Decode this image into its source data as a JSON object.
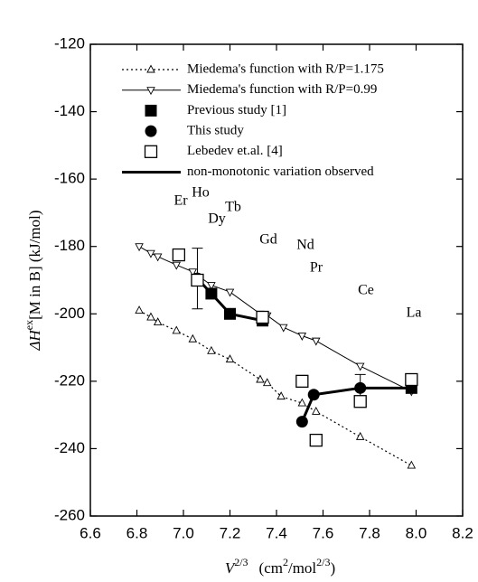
{
  "chart_data": {
    "type": "scatter",
    "xlabel": [
      "V",
      "2/3",
      "(cm",
      "2",
      "/mol",
      "2/3",
      ")"
    ],
    "ylabel": [
      "ΔH",
      "ex",
      "[M in B]  (kJ/mol)"
    ],
    "xlim": [
      6.6,
      8.2
    ],
    "xticks": [
      6.6,
      6.8,
      {
        "value": 7,
        "label": "7.0"
      },
      7.2,
      7.4,
      7.6,
      7.8,
      {
        "value": 8,
        "label": "8.0"
      },
      8.2
    ],
    "ylim": [
      -260,
      -120
    ],
    "yticks": [
      -260,
      -240,
      -220,
      -200,
      -180,
      -160,
      -140,
      -120
    ],
    "annotations": [
      "Er",
      "Ho",
      "Dy",
      "Tb",
      "Gd",
      "Nd",
      "Pr",
      "Ce",
      "La"
    ],
    "legend": "upper left",
    "series": [
      {
        "name": "Miedema's function with R/P=1.175",
        "color": "#000000",
        "marker": "triangle-up",
        "line": "dotted",
        "x": [
          6.81,
          6.86,
          6.89,
          6.97,
          7.04,
          7.12,
          7.2,
          7.33,
          7.36,
          7.42,
          7.51,
          7.57,
          7.76,
          7.98
        ],
        "values": [
          -199,
          -201,
          -202.5,
          -205,
          -207.5,
          -211,
          -213.5,
          -219.5,
          -220.5,
          -224.5,
          -226.5,
          -229,
          -236.5,
          -245
        ]
      },
      {
        "name": "Miedema's function with R/P=0.99",
        "color": "#000000",
        "marker": "triangle-down",
        "line": "solid",
        "x": [
          6.81,
          6.86,
          6.89,
          6.97,
          7.04,
          7.12,
          7.2,
          7.33,
          7.36,
          7.43,
          7.51,
          7.57,
          7.76,
          7.98
        ],
        "values": [
          -180,
          -182,
          -183,
          -185.5,
          -187.5,
          -191.5,
          -193.5,
          -200,
          -200.5,
          -204,
          -206.5,
          -208,
          -215.5,
          -223
        ]
      },
      {
        "name": "Previous study  [1]",
        "color": "#000000",
        "marker": "square-filled",
        "x": [
          7.12,
          7.2,
          7.34,
          7.98
        ],
        "values": [
          -194,
          -200,
          -202,
          -222
        ]
      },
      {
        "name": "This study",
        "color": "#000000",
        "marker": "circle-filled",
        "x": [
          7.06,
          7.51,
          7.56,
          7.76
        ],
        "values": [
          -189.5,
          -232,
          -224,
          -222
        ],
        "errors": [
          9,
          null,
          null,
          4
        ]
      },
      {
        "name": "Lebedev et.al. [4]",
        "color": "#000000",
        "marker": "square-open",
        "x": [
          6.98,
          7.06,
          7.34,
          7.51,
          7.57,
          7.76,
          7.98
        ],
        "values": [
          -182.5,
          -190,
          -201,
          -220,
          -237.5,
          -226,
          -219.5
        ]
      },
      {
        "name": "non-monotonic variation observed",
        "color": "#000000",
        "line": "thick",
        "x": [
          7.06,
          7.12,
          7.2,
          7.34,
          null,
          7.51,
          7.56,
          7.76,
          7.98
        ],
        "values": [
          -189.5,
          -194,
          -200,
          -202,
          null,
          -232,
          -224,
          -222,
          -222
        ]
      }
    ]
  }
}
